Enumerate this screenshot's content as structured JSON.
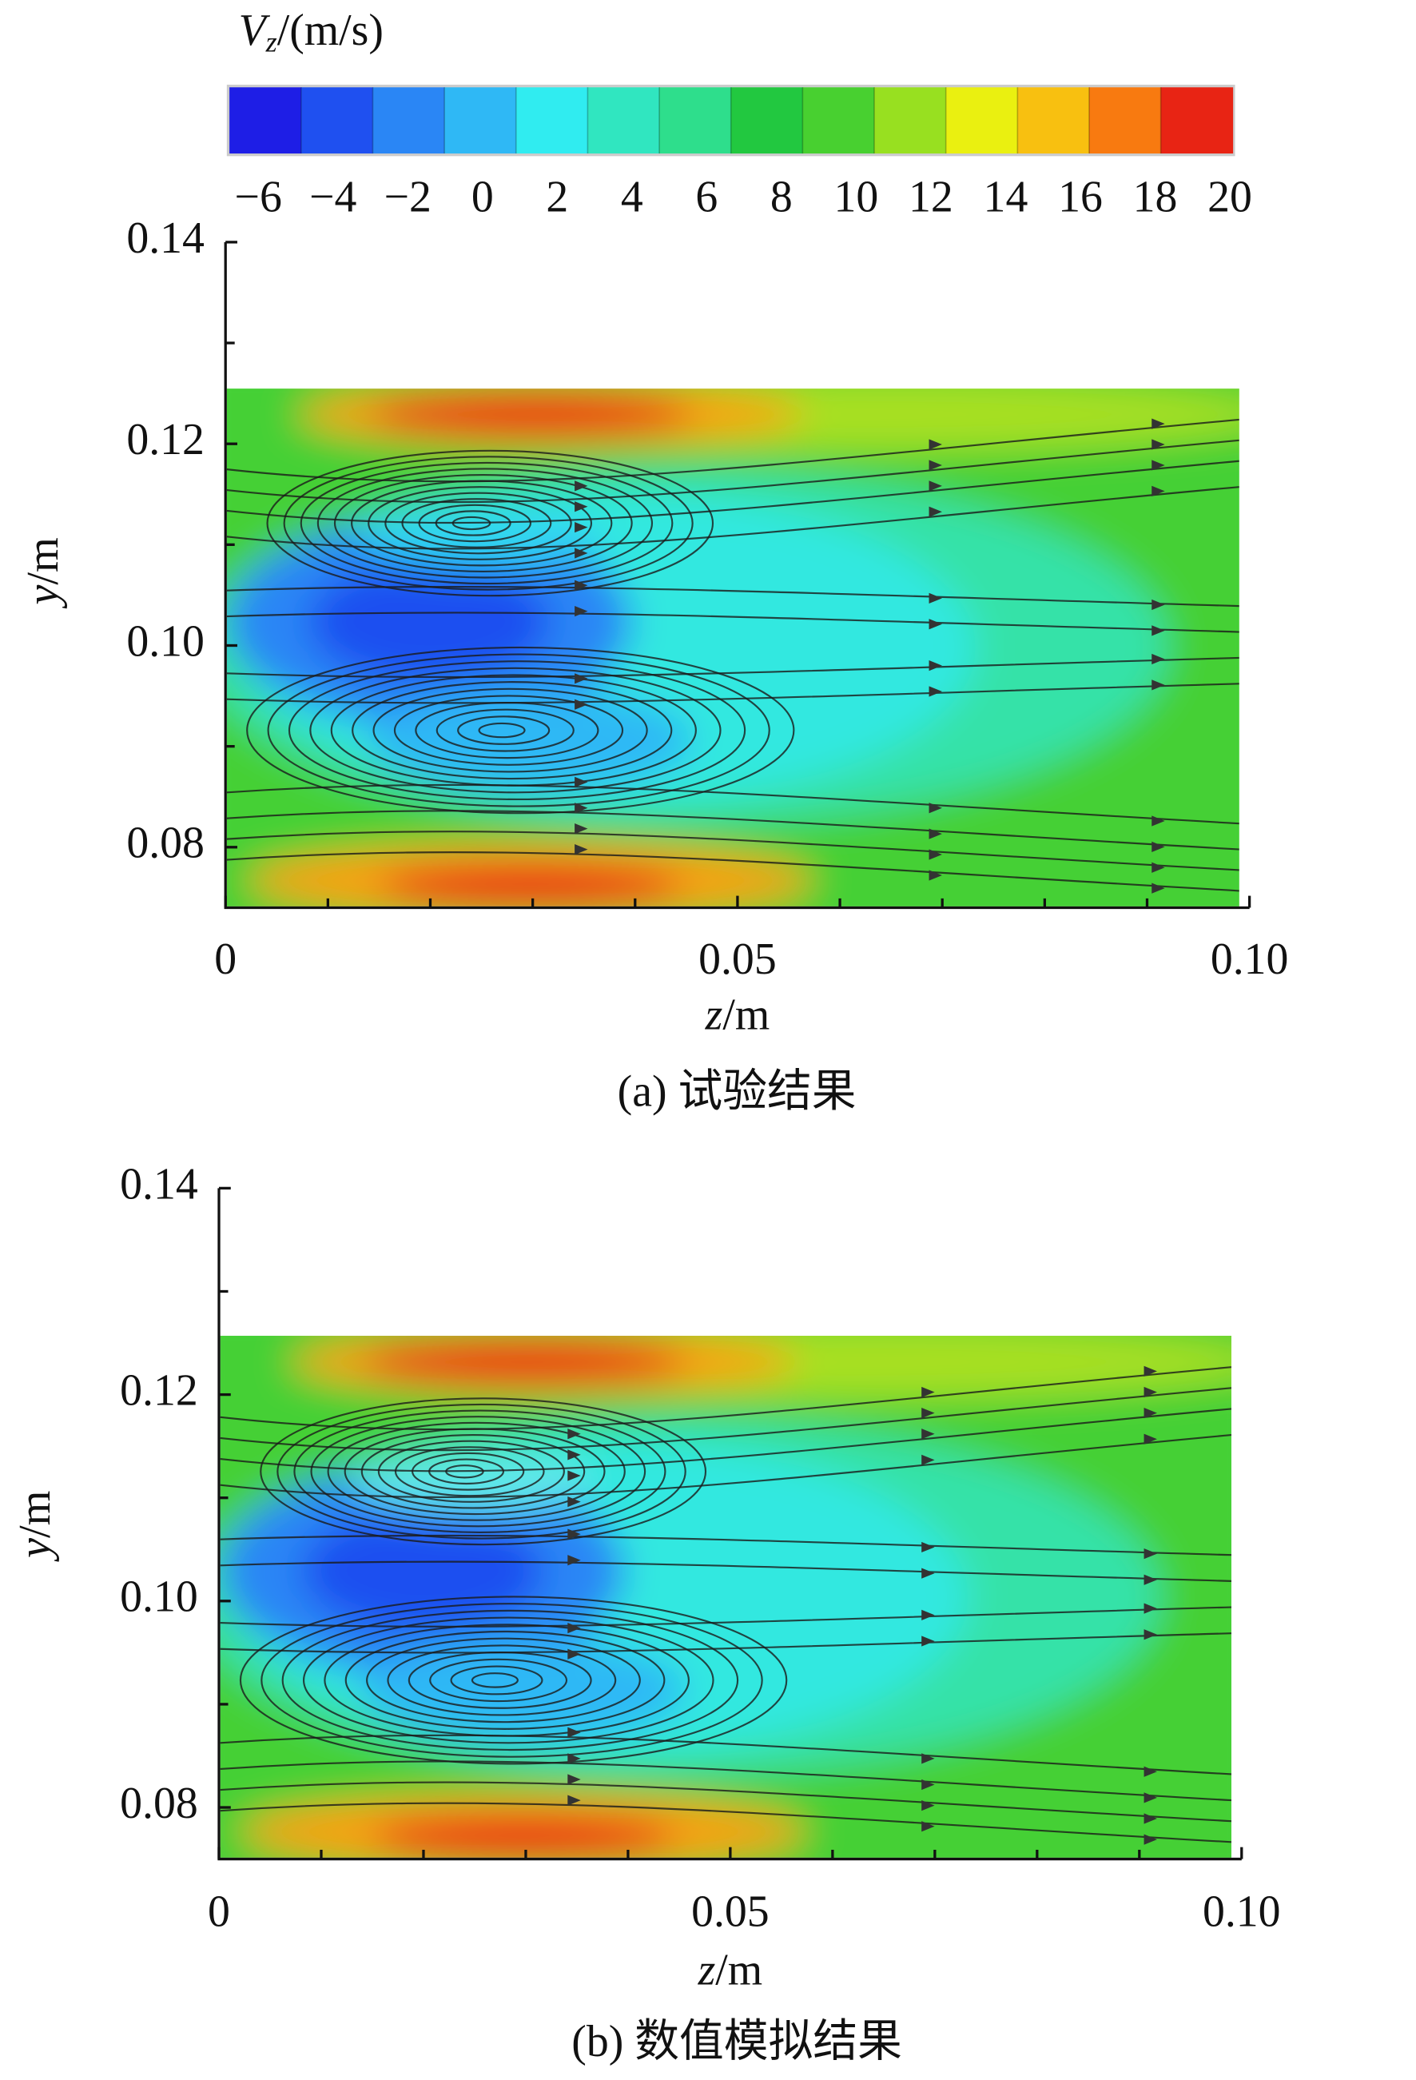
{
  "chart_data": [
    {
      "type": "contour",
      "caption": "(a) 试验结果",
      "xlabel": {
        "var": "z",
        "unit": "/m"
      },
      "ylabel": {
        "var": "y",
        "unit": "/m"
      },
      "xlim": [
        0,
        0.1
      ],
      "ylim": [
        0.074,
        0.14
      ],
      "xticks": [
        0,
        0.05,
        {
          "value": 0.1,
          "label": "0.10"
        }
      ],
      "yticks": [
        0.08,
        {
          "value": 0.1,
          "label": "0.10"
        },
        0.12,
        0.14
      ],
      "xminorticks": [
        0.01,
        0.02,
        0.03,
        0.04,
        0.06,
        0.07,
        0.08,
        0.09
      ],
      "yminorticks": [
        0.09,
        0.11,
        0.13
      ],
      "colorbar": {
        "label": {
          "symbol": "V",
          "subscript": "z",
          "unit": "/(m/s)"
        },
        "ticks": [
          {
            "value": -6,
            "label": "−6"
          },
          {
            "value": -4,
            "label": "−4"
          },
          {
            "value": -2,
            "label": "−2"
          },
          0,
          2,
          4,
          6,
          8,
          10,
          12,
          14,
          16,
          18,
          20
        ],
        "colors": [
          "#1e1ee6",
          "#1f50f0",
          "#2a86f5",
          "#2fb8f5",
          "#30ecf0",
          "#30e6c0",
          "#2ede8c",
          "#22c840",
          "#48d030",
          "#98e020",
          "#eaf010",
          "#f8c010",
          "#f87a10",
          "#e82414"
        ]
      }
    },
    {
      "type": "contour",
      "caption": "(b) 数值模拟结果",
      "xlabel": {
        "var": "z",
        "unit": "/m"
      },
      "ylabel": {
        "var": "y",
        "unit": "/m"
      },
      "xlim": [
        0,
        0.1
      ],
      "ylim": [
        0.075,
        0.14
      ],
      "xticks": [
        0,
        0.05,
        {
          "value": 0.1,
          "label": "0.10"
        }
      ],
      "yticks": [
        0.08,
        {
          "value": 0.1,
          "label": "0.10"
        },
        0.12,
        0.14
      ],
      "xminorticks": [
        0.01,
        0.02,
        0.03,
        0.04,
        0.06,
        0.07,
        0.08,
        0.09
      ],
      "yminorticks": [
        0.09,
        0.11,
        0.13
      ]
    }
  ]
}
